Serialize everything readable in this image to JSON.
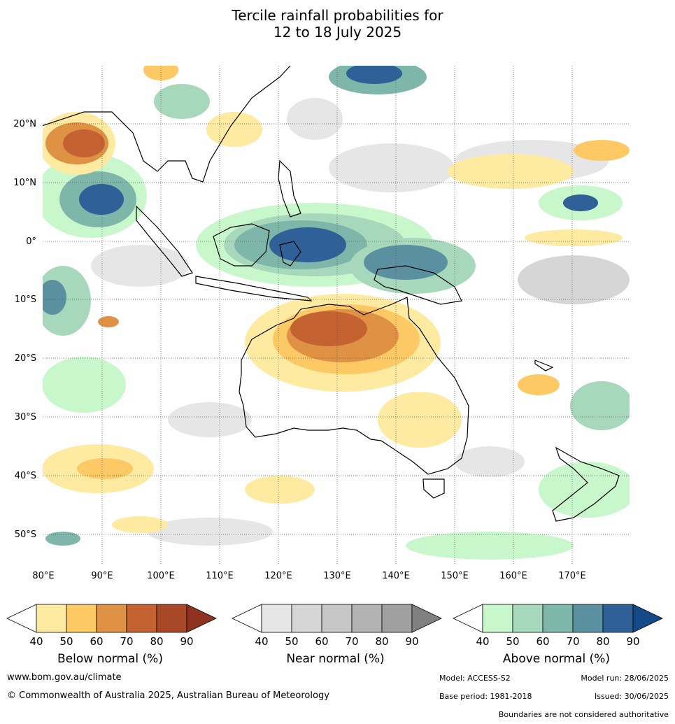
{
  "title_line1": "Tercile rainfall probabilities for",
  "title_line2": "12 to 18 July 2025",
  "map": {
    "lat_labels": [
      "20°N",
      "10°N",
      "0°",
      "10°S",
      "20°S",
      "30°S",
      "40°S",
      "50°S"
    ],
    "lon_labels": [
      "80°E",
      "90°E",
      "100°E",
      "110°E",
      "120°E",
      "130°E",
      "140°E",
      "150°E",
      "160°E",
      "170°E"
    ]
  },
  "legend": {
    "ticks": [
      "40",
      "50",
      "60",
      "70",
      "80",
      "90"
    ],
    "below": {
      "title": "Below normal (%)",
      "colors": [
        "#ffffff",
        "#feeaa0",
        "#fdc965",
        "#df9244",
        "#c46331",
        "#a94826",
        "#8f3320"
      ]
    },
    "near": {
      "title": "Near normal (%)",
      "colors": [
        "#ffffff",
        "#e6e6e6",
        "#d6d6d6",
        "#c6c6c6",
        "#b3b3b3",
        "#a0a0a0",
        "#808080"
      ]
    },
    "above": {
      "title": "Above normal (%)",
      "colors": [
        "#ffffff",
        "#c9f7cc",
        "#a7d8bc",
        "#7fb6aa",
        "#5b90a0",
        "#2f6097",
        "#134a87"
      ]
    }
  },
  "footer": {
    "website": "www.bom.gov.au/climate",
    "copyright": "© Commonwealth of Australia 2025, Australian Bureau of Meteorology",
    "model": "Model: ACCESS-S2",
    "model_run": "Model run: 28/06/2025",
    "base_period": "Base period: 1981-2018",
    "issued": "Issued: 30/06/2025",
    "disclaimer": "Boundaries are not considered authoritative"
  }
}
